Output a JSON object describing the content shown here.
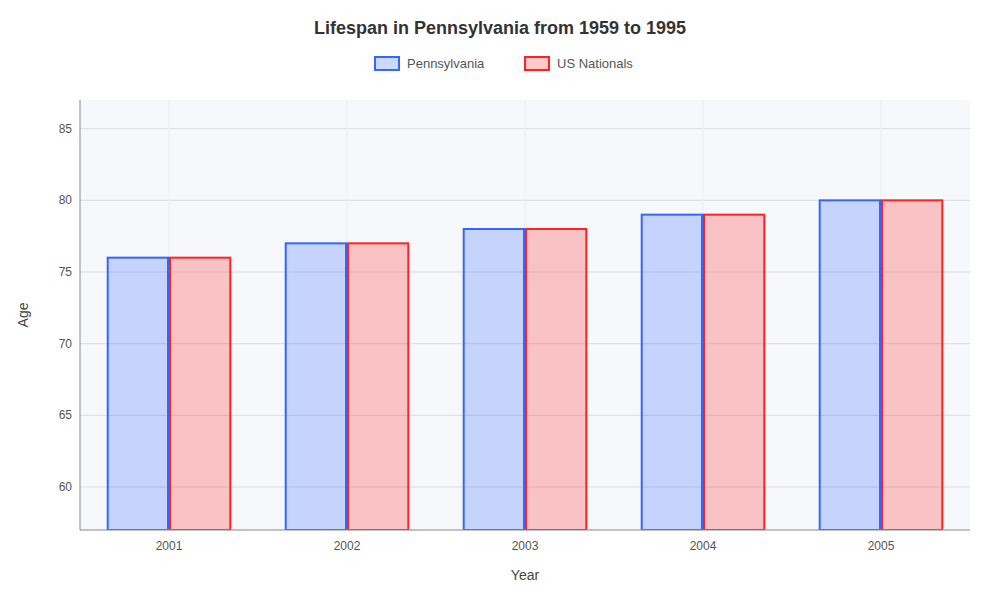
{
  "chart_data": {
    "type": "bar",
    "title": "Lifespan in Pennsylvania from 1959 to 1995",
    "x_label": "Year",
    "y_label": "Age",
    "categories": [
      "2001",
      "2002",
      "2003",
      "2004",
      "2005"
    ],
    "series": [
      {
        "name": "Pennsylvania",
        "color": "#3366ff",
        "values": [
          76,
          77,
          78,
          79,
          80
        ]
      },
      {
        "name": "US Nationals",
        "color": "#ff2222",
        "values": [
          76,
          77,
          78,
          79,
          80
        ]
      }
    ],
    "ylim": [
      57,
      87
    ],
    "yticks": [
      60,
      65,
      70,
      75,
      80,
      85
    ],
    "grid": true,
    "legend": "top"
  }
}
